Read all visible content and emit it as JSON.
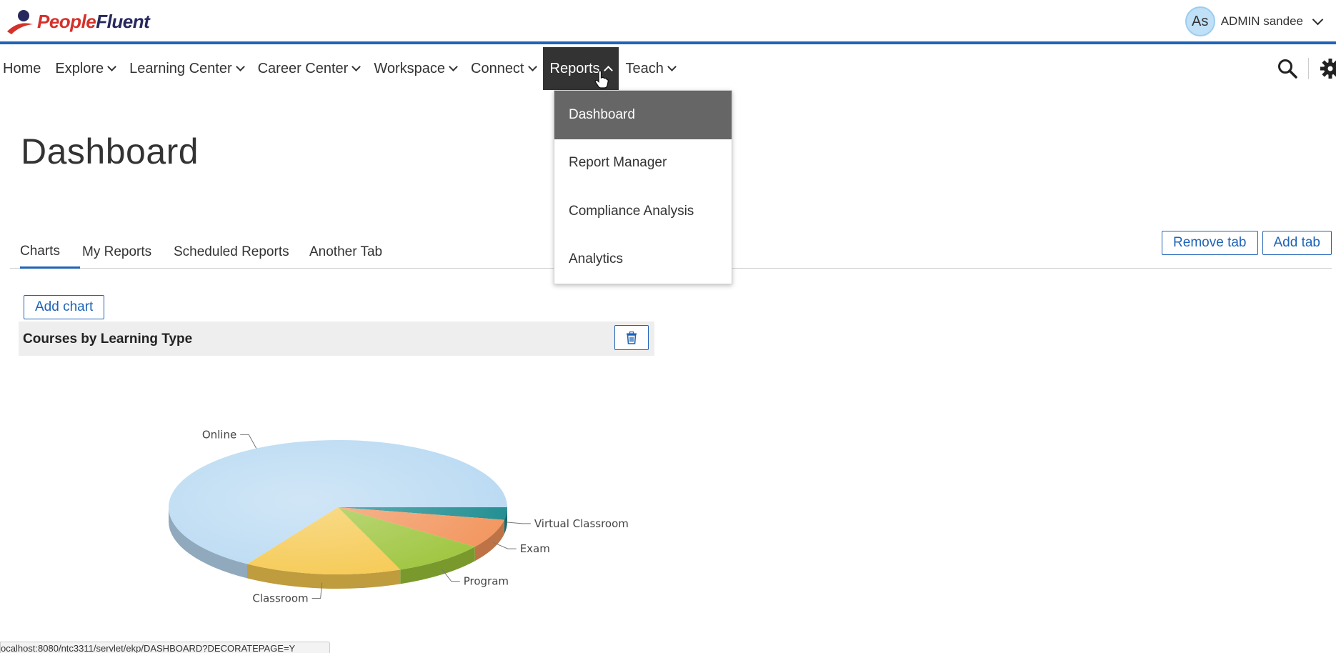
{
  "header": {
    "logo_text_a": "People",
    "logo_text_b": "Fluent",
    "avatar_initials": "As",
    "user_name": "ADMIN sandee"
  },
  "nav": {
    "items": [
      {
        "label": "Home"
      },
      {
        "label": "Explore"
      },
      {
        "label": "Learning Center"
      },
      {
        "label": "Career Center"
      },
      {
        "label": "Workspace"
      },
      {
        "label": "Connect"
      },
      {
        "label": "Reports"
      },
      {
        "label": "Teach"
      }
    ],
    "icons": [
      "search-icon",
      "gear-icon"
    ]
  },
  "reports_menu": {
    "items": [
      {
        "label": "Dashboard"
      },
      {
        "label": "Report Manager"
      },
      {
        "label": "Compliance Analysis"
      },
      {
        "label": "Analytics"
      }
    ]
  },
  "page": {
    "title": "Dashboard"
  },
  "tabs": {
    "items": [
      {
        "label": "Charts"
      },
      {
        "label": "My Reports"
      },
      {
        "label": "Scheduled Reports"
      },
      {
        "label": "Another Tab"
      }
    ],
    "remove_label": "Remove tab",
    "add_label": "Add tab"
  },
  "charts": {
    "add_chart_label": "Add chart",
    "panel_title": "Courses by Learning Type"
  },
  "chart_data": {
    "type": "pie",
    "title": "Courses by Learning Type",
    "slices": [
      {
        "label": "Online",
        "value": 66,
        "color": "#b8d9f2"
      },
      {
        "label": "Virtual Classroom",
        "value": 3,
        "color": "#1a8a8e"
      },
      {
        "label": "Exam",
        "value": 7,
        "color": "#f2935a"
      },
      {
        "label": "Program",
        "value": 9,
        "color": "#9cc43a"
      },
      {
        "label": "Classroom",
        "value": 15,
        "color": "#f5c84e"
      }
    ]
  },
  "statusbar": {
    "url": "ocalhost:8080/ntc3311/servlet/ekp/DASHBOARD?DECORATEPAGE=Y"
  },
  "colors": {
    "brand_blue": "#1f63b6",
    "nav_active_bg": "#333333",
    "menu_selected_bg": "#666666"
  }
}
